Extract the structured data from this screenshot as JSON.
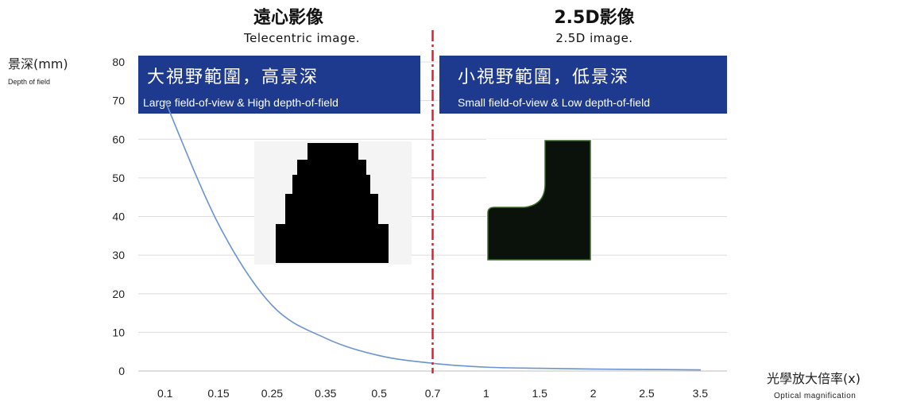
{
  "left_header": {
    "title": "遠心影像",
    "subtitle": "Telecentric image."
  },
  "right_header": {
    "title": "2.5D影像",
    "subtitle": "2.5D image."
  },
  "left_banner": {
    "main": "大視野範圍，高景深",
    "sub": "Large field-of-view & High depth-of-field"
  },
  "right_banner": {
    "main": "小視野範圍，低景深",
    "sub": "Small field-of-view & Low depth-of-field"
  },
  "colors": {
    "banner": "#1e3a8e",
    "curve": "#6a93d0",
    "divider": "#e0202e",
    "grid": "#dcdcdc"
  },
  "chart_data": {
    "type": "line",
    "ylabel": "景深(mm)",
    "ylabel_sub": "Depth of field",
    "xlabel": "光學放大倍率(x)",
    "xlabel_sub": "Optical magnification",
    "ylim": [
      0,
      80
    ],
    "yticks": [
      "0",
      "10",
      "20",
      "30",
      "40",
      "50",
      "60",
      "70",
      "80"
    ],
    "categories": [
      "0.1",
      "0.15",
      "0.25",
      "0.35",
      "0.5",
      "0.7",
      "1",
      "1.5",
      "2",
      "2.5",
      "3.5"
    ],
    "series": [
      {
        "values": [
          70,
          38,
          17,
          8.5,
          4,
          2,
          1,
          0.7,
          0.5,
          0.4,
          0.3
        ]
      }
    ],
    "divider_at": "0.7",
    "grid": true
  }
}
